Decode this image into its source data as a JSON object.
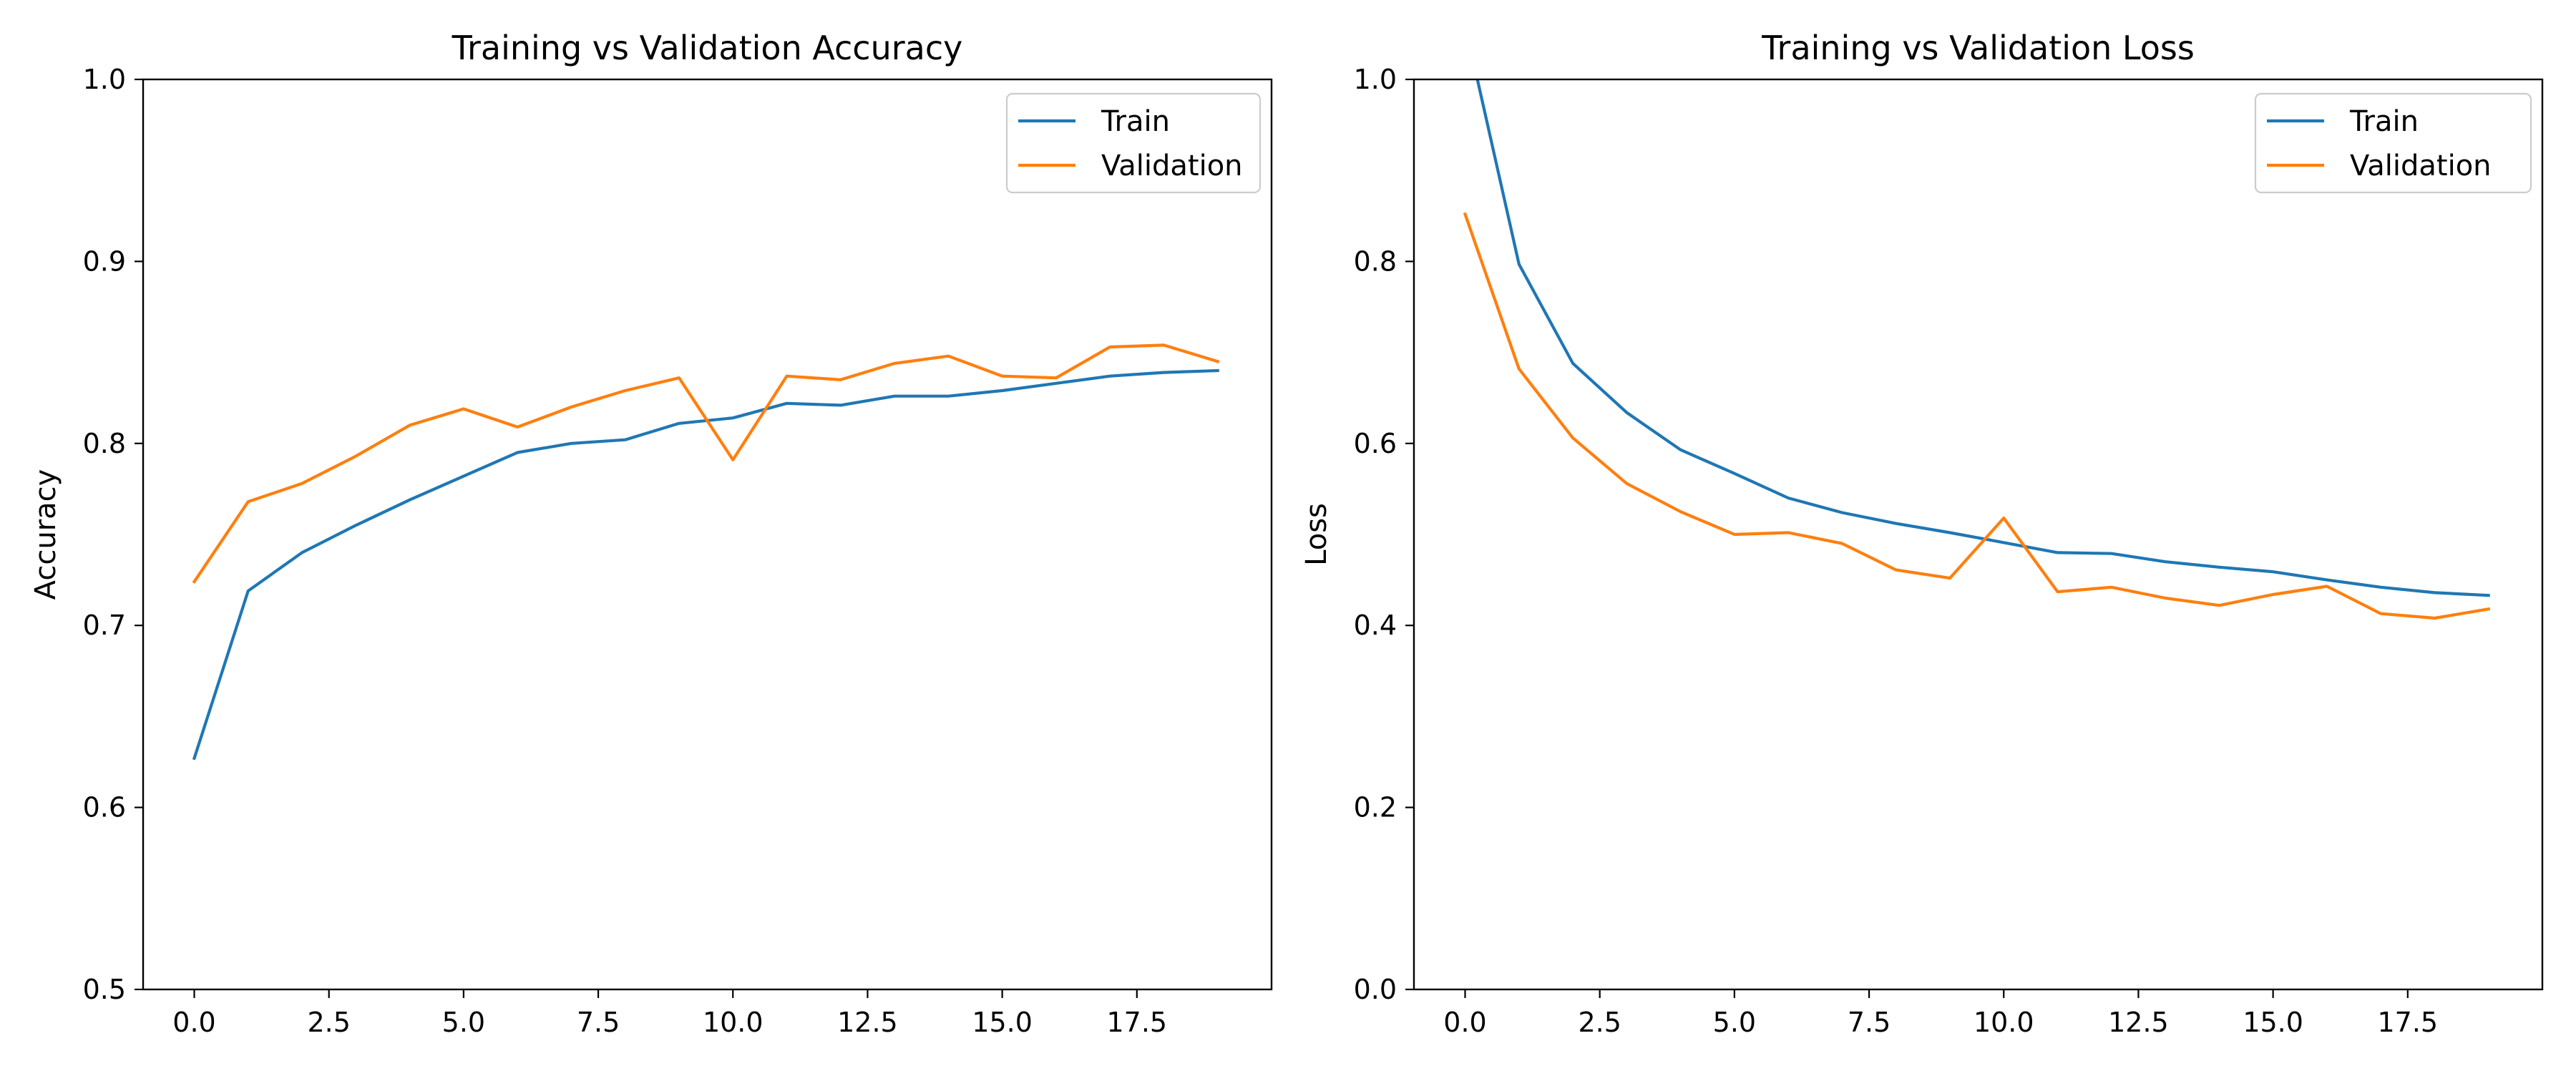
{
  "colors": {
    "train": "#1f77b4",
    "validation": "#ff7f0e",
    "axis": "#000000",
    "legend_border": "#cccccc",
    "background": "#ffffff"
  },
  "chart_data": [
    {
      "type": "line",
      "title": "Training vs Validation Accuracy",
      "xlabel": "",
      "ylabel": "Accuracy",
      "xlim": [
        -0.95,
        20.0
      ],
      "ylim": [
        0.5,
        1.0
      ],
      "grid": false,
      "legend_position": "top-right",
      "xticks": [
        0.0,
        2.5,
        5.0,
        7.5,
        10.0,
        12.5,
        15.0,
        17.5
      ],
      "xtick_labels": [
        "0.0",
        "2.5",
        "5.0",
        "7.5",
        "10.0",
        "12.5",
        "15.0",
        "17.5"
      ],
      "yticks": [
        0.5,
        0.6,
        0.7,
        0.8,
        0.9,
        1.0
      ],
      "ytick_labels": [
        "0.5",
        "0.6",
        "0.7",
        "0.8",
        "0.9",
        "1.0"
      ],
      "x": [
        0,
        1,
        2,
        3,
        4,
        5,
        6,
        7,
        8,
        9,
        10,
        11,
        12,
        13,
        14,
        15,
        16,
        17,
        18,
        19
      ],
      "series": [
        {
          "name": "Train",
          "color": "#1f77b4",
          "values": [
            0.627,
            0.719,
            0.74,
            0.755,
            0.769,
            0.782,
            0.795,
            0.8,
            0.802,
            0.811,
            0.814,
            0.822,
            0.821,
            0.826,
            0.826,
            0.829,
            0.833,
            0.837,
            0.839,
            0.84
          ]
        },
        {
          "name": "Validation",
          "color": "#ff7f0e",
          "values": [
            0.724,
            0.768,
            0.778,
            0.793,
            0.81,
            0.819,
            0.809,
            0.82,
            0.829,
            0.836,
            0.791,
            0.837,
            0.835,
            0.844,
            0.848,
            0.837,
            0.836,
            0.853,
            0.854,
            0.845
          ]
        }
      ]
    },
    {
      "type": "line",
      "title": "Training vs Validation Loss",
      "xlabel": "",
      "ylabel": "Loss",
      "xlim": [
        -0.95,
        20.0
      ],
      "ylim": [
        0.0,
        1.0
      ],
      "grid": false,
      "legend_position": "top-right",
      "xticks": [
        0.0,
        2.5,
        5.0,
        7.5,
        10.0,
        12.5,
        15.0,
        17.5
      ],
      "xtick_labels": [
        "0.0",
        "2.5",
        "5.0",
        "7.5",
        "10.0",
        "12.5",
        "15.0",
        "17.5"
      ],
      "yticks": [
        0.0,
        0.2,
        0.4,
        0.6,
        0.8,
        1.0
      ],
      "ytick_labels": [
        "0.0",
        "0.2",
        "0.4",
        "0.6",
        "0.8",
        "1.0"
      ],
      "x": [
        0,
        1,
        2,
        3,
        4,
        5,
        6,
        7,
        8,
        9,
        10,
        11,
        12,
        13,
        14,
        15,
        16,
        17,
        18,
        19
      ],
      "series": [
        {
          "name": "Train",
          "color": "#1f77b4",
          "values": [
            1.06,
            0.797,
            0.688,
            0.634,
            0.593,
            0.567,
            0.54,
            0.524,
            0.512,
            0.502,
            0.491,
            0.48,
            0.479,
            0.47,
            0.464,
            0.459,
            0.45,
            0.442,
            0.436,
            0.433
          ]
        },
        {
          "name": "Validation",
          "color": "#ff7f0e",
          "values": [
            0.852,
            0.682,
            0.606,
            0.556,
            0.525,
            0.5,
            0.502,
            0.49,
            0.461,
            0.452,
            0.518,
            0.437,
            0.442,
            0.43,
            0.422,
            0.434,
            0.443,
            0.413,
            0.408,
            0.418
          ]
        }
      ]
    }
  ]
}
